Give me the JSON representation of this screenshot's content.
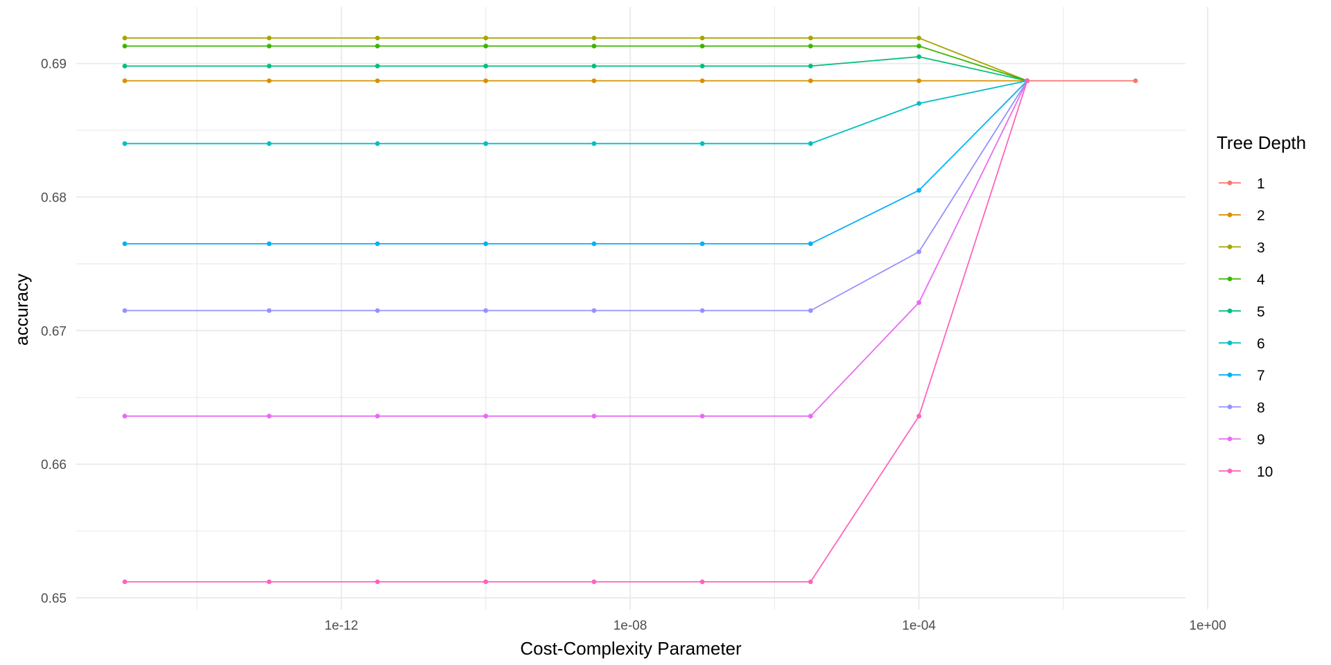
{
  "chart_data": {
    "type": "line",
    "title": "",
    "xlabel": "Cost-Complexity Parameter",
    "ylabel": "accuracy",
    "x_scale": "log10",
    "x": [
      1e-15,
      1e-13,
      3.16e-12,
      1e-10,
      3.16e-09,
      1e-07,
      3.16e-06,
      0.0001,
      0.00316,
      0.1
    ],
    "xlim": [
      1e-15,
      0.1
    ],
    "x_ticks": [
      1e-12,
      1e-08,
      0.0001,
      1.0
    ],
    "x_tick_labels": [
      "1e-12",
      "1e-08",
      "1e-04",
      "1e+00"
    ],
    "ylim": [
      0.65,
      0.692
    ],
    "y_ticks": [
      0.65,
      0.66,
      0.67,
      0.68,
      0.69
    ],
    "y_tick_labels": [
      "0.65",
      "0.66",
      "0.67",
      "0.68",
      "0.69"
    ],
    "grid": true,
    "legend": {
      "title": "Tree Depth",
      "position": "right"
    },
    "series": [
      {
        "name": "1",
        "color": "#F8766D",
        "values": [
          null,
          null,
          null,
          null,
          null,
          null,
          null,
          null,
          0.6887,
          0.6887
        ]
      },
      {
        "name": "2",
        "color": "#D89000",
        "values": [
          0.6887,
          0.6887,
          0.6887,
          0.6887,
          0.6887,
          0.6887,
          0.6887,
          0.6887,
          0.6887,
          null
        ]
      },
      {
        "name": "3",
        "color": "#A3A500",
        "values": [
          0.6919,
          0.6919,
          0.6919,
          0.6919,
          0.6919,
          0.6919,
          0.6919,
          0.6919,
          0.6887,
          null
        ]
      },
      {
        "name": "4",
        "color": "#39B600",
        "values": [
          0.6913,
          0.6913,
          0.6913,
          0.6913,
          0.6913,
          0.6913,
          0.6913,
          0.6913,
          0.6887,
          null
        ]
      },
      {
        "name": "5",
        "color": "#00BF7D",
        "values": [
          0.6898,
          0.6898,
          0.6898,
          0.6898,
          0.6898,
          0.6898,
          0.6898,
          0.6905,
          0.6887,
          null
        ]
      },
      {
        "name": "6",
        "color": "#00BFC4",
        "values": [
          0.684,
          0.684,
          0.684,
          0.684,
          0.684,
          0.684,
          0.684,
          0.687,
          0.6887,
          null
        ]
      },
      {
        "name": "7",
        "color": "#00B0F6",
        "values": [
          0.6765,
          0.6765,
          0.6765,
          0.6765,
          0.6765,
          0.6765,
          0.6765,
          0.6805,
          0.6887,
          null
        ]
      },
      {
        "name": "8",
        "color": "#9590FF",
        "values": [
          0.6715,
          0.6715,
          0.6715,
          0.6715,
          0.6715,
          0.6715,
          0.6715,
          0.6759,
          0.6887,
          null
        ]
      },
      {
        "name": "9",
        "color": "#E76BF3",
        "values": [
          0.6636,
          0.6636,
          0.6636,
          0.6636,
          0.6636,
          0.6636,
          0.6636,
          0.6721,
          0.6887,
          null
        ]
      },
      {
        "name": "10",
        "color": "#FF62BC",
        "values": [
          0.6512,
          0.6512,
          0.6512,
          0.6512,
          0.6512,
          0.6512,
          0.6512,
          0.6636,
          0.6887,
          null
        ]
      }
    ]
  }
}
